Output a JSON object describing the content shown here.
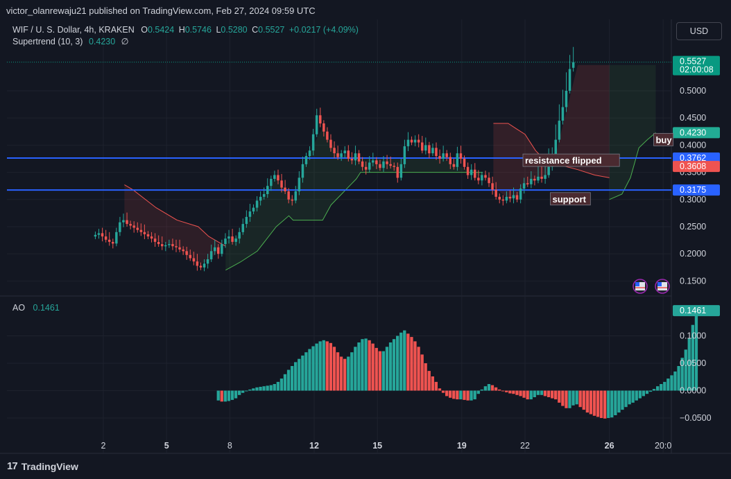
{
  "header": {
    "published": "victor_olanrewaju21 published on TradingView.com, Feb 27, 2024 09:59 UTC"
  },
  "symbol_legend": {
    "symbol": "WIF / U. S. Dollar, 4h, KRAKEN",
    "o_label": "O",
    "o_value": "0.5424",
    "h_label": "H",
    "h_value": "0.5746",
    "l_label": "L",
    "l_value": "0.5280",
    "c_label": "C",
    "c_value": "0.5527",
    "change": "+0.0217 (+4.09%)"
  },
  "indicator_legend": {
    "name": "Supertrend (10, 3)",
    "value": "0.4230",
    "symbol": "∅"
  },
  "ao_legend": {
    "name": "AO",
    "value": "0.1461"
  },
  "currency_button": "USD",
  "footer": {
    "brand": "TradingView",
    "logo": "17"
  },
  "colors": {
    "up": "#26a69a",
    "down": "#ef5350",
    "line": "#2962ff",
    "bg": "#131722",
    "grid": "#1e222d"
  },
  "chart_data": [
    {
      "type": "candlestick",
      "title": "",
      "ylim": [
        0.13,
        0.59
      ],
      "y_ticks": [
        "0.5000",
        "0.4500",
        "0.4000",
        "0.3500",
        "0.3000",
        "0.2500",
        "0.2000",
        "0.1500"
      ],
      "y_tick_values": [
        0.5,
        0.45,
        0.4,
        0.35,
        0.3,
        0.25,
        0.2,
        0.15
      ],
      "price_labels": [
        {
          "value": 0.5527,
          "text": "0.5527",
          "sub": "02:00:08",
          "color": "#089981"
        },
        {
          "value": 0.423,
          "text": "0.4230",
          "color": "#22ab94"
        },
        {
          "value": 0.3762,
          "text": "0.3762",
          "color": "#2962ff"
        },
        {
          "value": 0.3608,
          "text": "0.3608",
          "color": "#ef5350"
        },
        {
          "value": 0.3175,
          "text": "0.3175",
          "color": "#2962ff"
        }
      ],
      "horizontal_lines": [
        0.3762,
        0.3175
      ],
      "last_price": 0.5527,
      "annotations": [
        {
          "text": "buy",
          "day": 28.2,
          "value": 0.409
        },
        {
          "text": "resistance flipped",
          "day": 22.0,
          "value": 0.371
        },
        {
          "text": "support",
          "day": 23.3,
          "value": 0.3
        },
        {
          "text": "",
          "day": 27.2,
          "value": 0.14
        }
      ],
      "x_ticks": [
        {
          "day": 2,
          "label": "2",
          "bold": false
        },
        {
          "day": 5,
          "label": "5",
          "bold": true
        },
        {
          "day": 8,
          "label": "8",
          "bold": false
        },
        {
          "day": 12,
          "label": "12",
          "bold": true
        },
        {
          "day": 15,
          "label": "15",
          "bold": true
        },
        {
          "day": 19,
          "label": "19",
          "bold": true
        },
        {
          "day": 22,
          "label": "22",
          "bold": false
        },
        {
          "day": 26,
          "label": "26",
          "bold": true
        },
        {
          "day": 28.55,
          "label": "20:0",
          "bold": false
        }
      ],
      "start_day": 1.62,
      "bar_days": 0.1667,
      "closes": [
        0.235,
        0.238,
        0.232,
        0.226,
        0.222,
        0.219,
        0.24,
        0.258,
        0.262,
        0.255,
        0.252,
        0.248,
        0.244,
        0.24,
        0.236,
        0.232,
        0.228,
        0.222,
        0.218,
        0.214,
        0.216,
        0.218,
        0.214,
        0.212,
        0.208,
        0.205,
        0.198,
        0.192,
        0.186,
        0.178,
        0.175,
        0.182,
        0.19,
        0.205,
        0.212,
        0.2,
        0.218,
        0.228,
        0.232,
        0.222,
        0.228,
        0.24,
        0.255,
        0.268,
        0.278,
        0.285,
        0.298,
        0.305,
        0.31,
        0.325,
        0.338,
        0.345,
        0.335,
        0.322,
        0.315,
        0.3,
        0.298,
        0.315,
        0.34,
        0.365,
        0.38,
        0.39,
        0.42,
        0.455,
        0.44,
        0.425,
        0.41,
        0.395,
        0.385,
        0.378,
        0.385,
        0.39,
        0.375,
        0.372,
        0.385,
        0.37,
        0.36,
        0.355,
        0.368,
        0.372,
        0.365,
        0.358,
        0.37,
        0.365,
        0.362,
        0.36,
        0.34,
        0.365,
        0.398,
        0.41,
        0.405,
        0.41,
        0.405,
        0.39,
        0.4,
        0.385,
        0.395,
        0.38,
        0.375,
        0.385,
        0.378,
        0.365,
        0.36,
        0.385,
        0.375,
        0.36,
        0.345,
        0.355,
        0.34,
        0.335,
        0.345,
        0.34,
        0.33,
        0.318,
        0.305,
        0.3,
        0.298,
        0.305,
        0.302,
        0.308,
        0.3,
        0.32,
        0.33,
        0.328,
        0.338,
        0.335,
        0.342,
        0.338,
        0.345,
        0.36,
        0.37,
        0.41,
        0.445,
        0.47,
        0.5,
        0.54,
        0.5527
      ],
      "opens": [
        0.232,
        0.235,
        0.238,
        0.232,
        0.226,
        0.222,
        0.219,
        0.24,
        0.258,
        0.262,
        0.255,
        0.252,
        0.248,
        0.244,
        0.24,
        0.236,
        0.232,
        0.228,
        0.222,
        0.218,
        0.214,
        0.216,
        0.218,
        0.214,
        0.212,
        0.208,
        0.205,
        0.198,
        0.192,
        0.186,
        0.178,
        0.175,
        0.182,
        0.19,
        0.205,
        0.212,
        0.2,
        0.218,
        0.228,
        0.232,
        0.222,
        0.228,
        0.24,
        0.255,
        0.268,
        0.278,
        0.285,
        0.298,
        0.305,
        0.31,
        0.325,
        0.338,
        0.345,
        0.335,
        0.322,
        0.315,
        0.3,
        0.298,
        0.315,
        0.34,
        0.365,
        0.38,
        0.39,
        0.42,
        0.455,
        0.44,
        0.425,
        0.41,
        0.395,
        0.385,
        0.378,
        0.385,
        0.39,
        0.375,
        0.372,
        0.385,
        0.37,
        0.36,
        0.355,
        0.368,
        0.372,
        0.365,
        0.358,
        0.37,
        0.365,
        0.362,
        0.36,
        0.34,
        0.365,
        0.398,
        0.41,
        0.405,
        0.41,
        0.405,
        0.39,
        0.4,
        0.385,
        0.395,
        0.38,
        0.375,
        0.385,
        0.378,
        0.365,
        0.36,
        0.385,
        0.375,
        0.36,
        0.345,
        0.355,
        0.34,
        0.335,
        0.345,
        0.34,
        0.33,
        0.318,
        0.305,
        0.3,
        0.298,
        0.305,
        0.302,
        0.308,
        0.3,
        0.32,
        0.33,
        0.328,
        0.338,
        0.335,
        0.342,
        0.338,
        0.345,
        0.36,
        0.37,
        0.41,
        0.445,
        0.47,
        0.5,
        0.5424
      ]
    },
    {
      "type": "bar",
      "title": "",
      "name": "AO",
      "ylim": [
        -0.07,
        0.16
      ],
      "y_ticks": [
        "0.1000",
        "0.0500",
        "0.0000",
        "−0.0500"
      ],
      "y_tick_values": [
        0.1,
        0.05,
        0.0,
        -0.05
      ],
      "last_value_label": "0.1461",
      "start_day": 7.45,
      "bar_days": 0.1667,
      "values": [
        -0.018,
        -0.02,
        -0.02,
        -0.019,
        -0.017,
        -0.014,
        -0.008,
        -0.004,
        -0.001,
        0.002,
        0.004,
        0.006,
        0.007,
        0.008,
        0.009,
        0.01,
        0.012,
        0.016,
        0.022,
        0.03,
        0.038,
        0.045,
        0.052,
        0.058,
        0.064,
        0.07,
        0.076,
        0.081,
        0.086,
        0.09,
        0.092,
        0.09,
        0.087,
        0.08,
        0.07,
        0.062,
        0.058,
        0.062,
        0.07,
        0.08,
        0.088,
        0.094,
        0.095,
        0.092,
        0.086,
        0.078,
        0.072,
        0.072,
        0.08,
        0.088,
        0.094,
        0.1,
        0.106,
        0.11,
        0.104,
        0.098,
        0.09,
        0.08,
        0.066,
        0.05,
        0.036,
        0.026,
        0.016,
        0.004,
        -0.004,
        -0.01,
        -0.013,
        -0.015,
        -0.016,
        -0.016,
        -0.017,
        -0.018,
        -0.018,
        -0.016,
        -0.006,
        0.002,
        0.008,
        0.012,
        0.01,
        0.006,
        0.002,
        -0.001,
        -0.003,
        -0.005,
        -0.006,
        -0.008,
        -0.01,
        -0.013,
        -0.016,
        -0.016,
        -0.012,
        -0.008,
        -0.008,
        -0.01,
        -0.012,
        -0.014,
        -0.016,
        -0.022,
        -0.028,
        -0.032,
        -0.032,
        -0.027,
        -0.025,
        -0.03,
        -0.035,
        -0.04,
        -0.043,
        -0.046,
        -0.048,
        -0.05,
        -0.051,
        -0.05,
        -0.049,
        -0.045,
        -0.04,
        -0.035,
        -0.03,
        -0.025,
        -0.022,
        -0.018,
        -0.014,
        -0.01,
        -0.006,
        -0.002,
        0.003,
        0.008,
        0.012,
        0.016,
        0.022,
        0.028,
        0.035,
        0.045,
        0.06,
        0.075,
        0.095,
        0.12,
        0.1461
      ]
    }
  ]
}
